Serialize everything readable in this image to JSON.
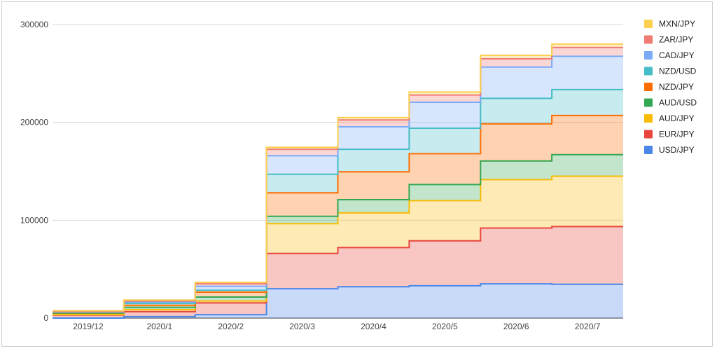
{
  "chart_data": {
    "type": "area",
    "stacked": true,
    "step": true,
    "title": "",
    "xlabel": "",
    "ylabel": "",
    "ylim": [
      0,
      300000
    ],
    "yticks": [
      0,
      100000,
      200000,
      300000
    ],
    "ytick_labels": [
      "0",
      "100000",
      "200000",
      "300000"
    ],
    "grid": true,
    "legend_position": "right",
    "categories": [
      "2019/12",
      "2020/1",
      "2020/2",
      "2020/3",
      "2020/4",
      "2020/5",
      "2020/6",
      "2020/7"
    ],
    "series": [
      {
        "name": "USD/JPY",
        "color": "#4a86e8",
        "values": [
          0,
          1500,
          3500,
          30000,
          32000,
          33000,
          35000,
          34500
        ]
      },
      {
        "name": "EUR/JPY",
        "color": "#e8453c",
        "values": [
          3000,
          5000,
          12000,
          36000,
          40000,
          46000,
          57000,
          59000
        ]
      },
      {
        "name": "AUD/JPY",
        "color": "#f9bb06",
        "values": [
          500,
          2000,
          2000,
          30500,
          35500,
          41000,
          49500,
          51500
        ]
      },
      {
        "name": "AUD/USD",
        "color": "#34a853",
        "values": [
          1500,
          2500,
          4000,
          7500,
          13500,
          16500,
          19000,
          22000
        ]
      },
      {
        "name": "NZD/JPY",
        "color": "#ff6d00",
        "values": [
          500,
          2000,
          5000,
          24000,
          28500,
          31500,
          38000,
          40000
        ]
      },
      {
        "name": "NZD/USD",
        "color": "#46bdc6",
        "values": [
          500,
          2000,
          2000,
          19000,
          23000,
          26000,
          26000,
          26500
        ]
      },
      {
        "name": "CAD/JPY",
        "color": "#7baaf7",
        "values": [
          500,
          1500,
          4000,
          19000,
          23000,
          26500,
          32000,
          34000
        ]
      },
      {
        "name": "ZAR/JPY",
        "color": "#f07b72",
        "values": [
          500,
          1000,
          2500,
          6500,
          7000,
          7500,
          8500,
          9000
        ]
      },
      {
        "name": "MXN/JPY",
        "color": "#fcd04f",
        "values": [
          500,
          1000,
          1500,
          2000,
          2500,
          3000,
          3500,
          3500
        ]
      }
    ]
  }
}
